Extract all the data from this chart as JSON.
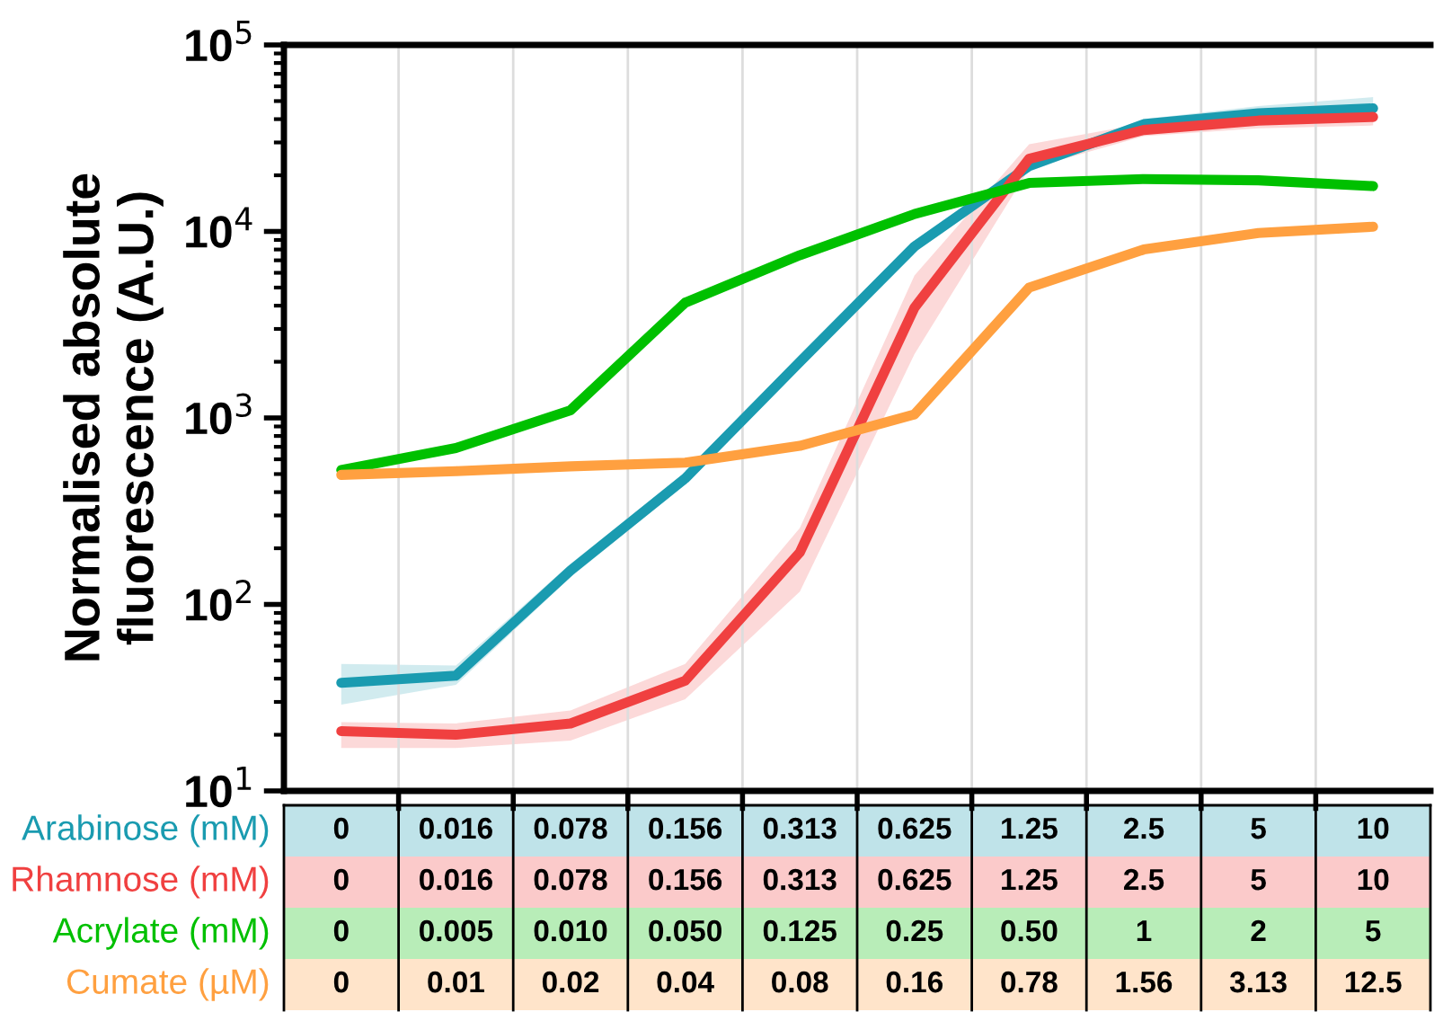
{
  "chart_data": {
    "type": "line",
    "ylabel": "Normalised absolute\nfluorescence (A.U.)",
    "log": "y",
    "ylim": [
      10,
      100000
    ],
    "yticks": [
      {
        "value": 10,
        "label": "10$^{1}$"
      },
      {
        "value": 100,
        "label": "10$^{2}$"
      },
      {
        "value": 1000,
        "label": "10$^{3}$"
      },
      {
        "value": 10000,
        "label": "10$^{4}$"
      },
      {
        "value": 100000,
        "label": "10$^{5}$"
      }
    ],
    "grid": "x",
    "marker": "none",
    "line_style": "solid",
    "categories": [
      null,
      null,
      null,
      null,
      null,
      null,
      null,
      null,
      null,
      null
    ],
    "series": [
      {
        "name": "Arabinose (mM)",
        "color": "#1a9bb0",
        "values": [
          38,
          41.5,
          152,
          474,
          2000,
          8300,
          22400,
          37600,
          43000,
          45700
        ],
        "lower": [
          29,
          37,
          140,
          440,
          1850,
          7800,
          21000,
          35000,
          40000,
          43000
        ],
        "upper": [
          48,
          47,
          165,
          510,
          2150,
          8800,
          24000,
          40000,
          47000,
          52500
        ]
      },
      {
        "name": "Rhamnose (mM)",
        "color": "#f04040",
        "values": [
          20.9,
          20,
          23,
          39,
          190,
          3900,
          24500,
          35000,
          39300,
          41100
        ],
        "lower": [
          17,
          17,
          18.6,
          31,
          117,
          2200,
          21700,
          32400,
          35700,
          37000
        ],
        "upper": [
          23.4,
          23,
          27,
          48,
          257,
          5800,
          29300,
          38000,
          43000,
          44900
        ]
      },
      {
        "name": "Acrylate (mM)",
        "color": "#00c000",
        "values": [
          525,
          690,
          1100,
          4150,
          7460,
          12400,
          18200,
          19100,
          18800,
          17500
        ]
      },
      {
        "name": "Cumate (µM)",
        "color": "#ffa040",
        "values": [
          495,
          518,
          550,
          576,
          708,
          1045,
          5000,
          8000,
          9800,
          10600
        ]
      }
    ],
    "annotations": [
      "0",
      "0.016",
      "0.078",
      "0.156",
      "0.313",
      "0.625",
      "1.25",
      "2.5",
      "5",
      "10",
      "0",
      "0.016",
      "0.078",
      "0.156",
      "0.313",
      "0.625",
      "1.25",
      "2.5",
      "5",
      "10",
      "0",
      "0.005",
      "0.010",
      "0.050",
      "0.125",
      "0.25",
      "0.50",
      "1",
      "2",
      "5",
      "0",
      "0.01",
      "0.02",
      "0.04",
      "0.08",
      "0.16",
      "0.78",
      "1.56",
      "3.13",
      "12.5"
    ]
  }
}
